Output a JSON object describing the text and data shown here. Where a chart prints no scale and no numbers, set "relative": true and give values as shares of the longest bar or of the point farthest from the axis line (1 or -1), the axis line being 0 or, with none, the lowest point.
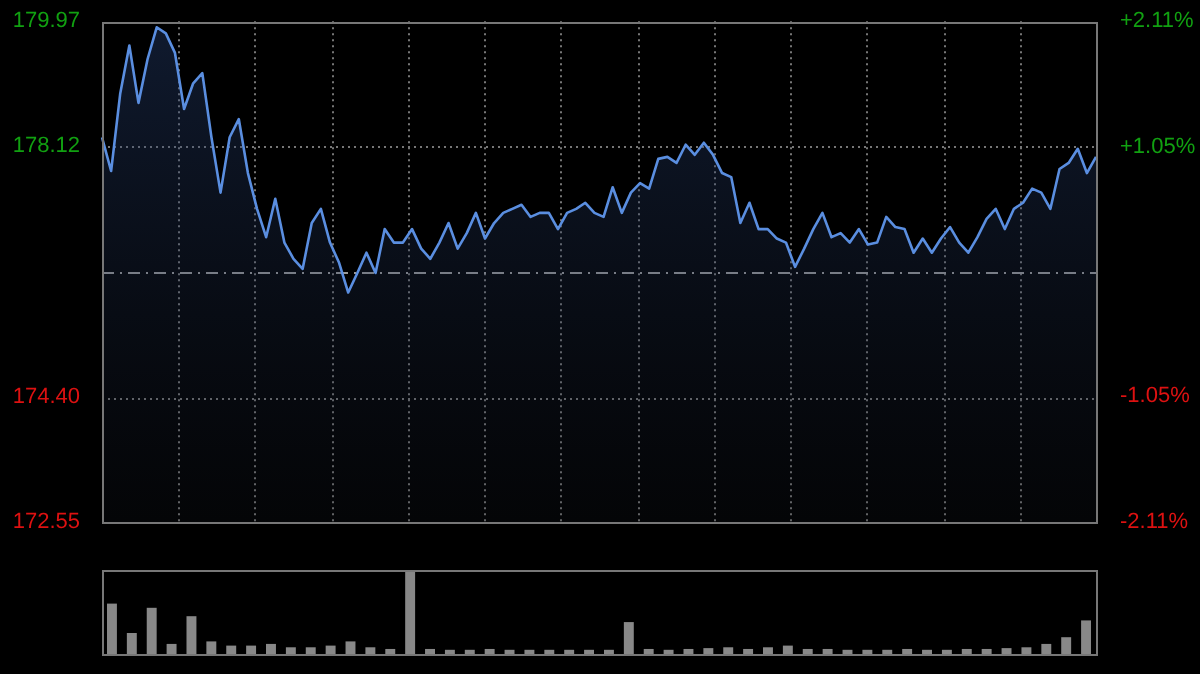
{
  "chart_data": [
    {
      "type": "area",
      "categories": [
        null,
        null,
        null,
        null,
        null,
        null,
        null,
        null,
        null,
        null,
        null,
        null,
        null,
        null,
        null,
        null,
        null,
        null,
        null,
        null,
        null,
        null,
        null,
        null,
        null,
        null,
        null,
        null,
        null,
        null,
        null,
        null,
        null,
        null,
        null,
        null,
        null,
        null,
        null,
        null,
        null,
        null,
        null,
        null,
        null,
        null,
        null,
        null,
        null,
        null,
        null,
        null,
        null,
        null,
        null,
        null,
        null,
        null,
        null,
        null,
        null,
        null,
        null,
        null,
        null,
        null,
        null,
        null,
        null,
        null,
        null,
        null,
        null,
        null,
        null,
        null,
        null,
        null,
        null,
        null,
        null,
        null,
        null,
        null,
        null,
        null,
        null,
        null,
        null,
        null,
        null,
        null,
        null,
        null,
        null,
        null,
        null,
        null,
        null,
        null,
        null,
        null,
        null,
        null,
        null,
        null,
        null,
        null,
        null,
        null
      ],
      "series": [
        {
          "color": "#5a8ee0",
          "values": [
            178.25,
            177.75,
            178.9,
            179.61,
            178.76,
            179.41,
            179.88,
            179.79,
            179.5,
            178.67,
            179.05,
            179.2,
            178.25,
            177.43,
            178.25,
            178.52,
            177.72,
            177.19,
            176.77,
            177.34,
            176.69,
            176.45,
            176.3,
            176.98,
            177.19,
            176.69,
            176.39,
            175.95,
            176.24,
            176.54,
            176.24,
            176.89,
            176.69,
            176.69,
            176.89,
            176.6,
            176.45,
            176.69,
            176.98,
            176.6,
            176.83,
            177.13,
            176.75,
            176.98,
            177.13,
            177.19,
            177.25,
            177.07,
            177.13,
            177.13,
            176.89,
            177.13,
            177.19,
            177.28,
            177.13,
            177.07,
            177.51,
            177.13,
            177.43,
            177.57,
            177.49,
            177.93,
            177.96,
            177.87,
            178.14,
            177.99,
            178.17,
            177.99,
            177.72,
            177.66,
            176.98,
            177.28,
            176.89,
            176.89,
            176.75,
            176.69,
            176.33,
            176.6,
            176.89,
            177.13,
            176.77,
            176.83,
            176.69,
            176.89,
            176.66,
            176.69,
            177.07,
            176.92,
            176.89,
            176.54,
            176.75,
            176.54,
            176.75,
            176.92,
            176.69,
            176.54,
            176.77,
            177.04,
            177.19,
            176.89,
            177.19,
            177.28,
            177.49,
            177.43,
            177.19,
            177.78,
            177.87,
            178.08,
            177.72,
            177.96
          ]
        }
      ],
      "ylim": [
        172.55,
        179.97
      ],
      "yticks": [
        172.55,
        {
          "value": 174.4,
          "label": "174.40"
        },
        178.12,
        179.97
      ],
      "y2lim": [
        -2.11,
        2.11
      ],
      "y2ticks": [
        {
          "value": 2.11,
          "label": "+2.11%"
        },
        {
          "value": 1.05,
          "label": "+1.05%"
        },
        {
          "value": -1.05,
          "label": "-1.05%"
        },
        {
          "value": -2.11,
          "label": "-2.11%"
        }
      ],
      "ref_lines": [
        {
          "axis": "y",
          "value": 176.26,
          "line_style": "dashed"
        }
      ],
      "grid": true,
      "tick_labels": "y",
      "legend": false,
      "marker": "none"
    },
    {
      "type": "bar",
      "relative": true,
      "categories": [
        null,
        null,
        null,
        null,
        null,
        null,
        null,
        null,
        null,
        null,
        null,
        null,
        null,
        null,
        null,
        null,
        null,
        null,
        null,
        null,
        null,
        null,
        null,
        null,
        null,
        null,
        null,
        null,
        null,
        null,
        null,
        null,
        null,
        null,
        null,
        null,
        null,
        null,
        null,
        null,
        null,
        null,
        null,
        null,
        null,
        null,
        null,
        null,
        null,
        null
      ],
      "series": [
        {
          "color": "#888888",
          "values": [
            0.6,
            0.25,
            0.55,
            0.12,
            0.45,
            0.15,
            0.1,
            0.1,
            0.12,
            0.08,
            0.08,
            0.1,
            0.15,
            0.08,
            0.06,
            1.0,
            0.06,
            0.05,
            0.05,
            0.06,
            0.05,
            0.05,
            0.05,
            0.05,
            0.05,
            0.05,
            0.38,
            0.06,
            0.05,
            0.06,
            0.07,
            0.08,
            0.06,
            0.08,
            0.1,
            0.06,
            0.06,
            0.05,
            0.05,
            0.05,
            0.06,
            0.05,
            0.05,
            0.06,
            0.06,
            0.07,
            0.08,
            0.12,
            0.2,
            0.4
          ]
        }
      ],
      "tick_labels": false,
      "legend": false
    }
  ]
}
